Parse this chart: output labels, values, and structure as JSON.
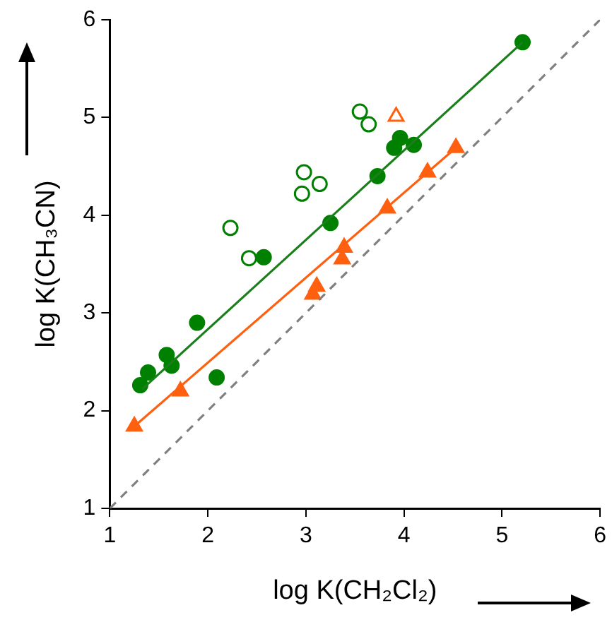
{
  "chart_data": {
    "type": "scatter",
    "xlabel": "log K(CH₂Cl₂)",
    "ylabel": "log K(CH₃CN)",
    "xlim": [
      1,
      6
    ],
    "ylim": [
      1,
      6
    ],
    "xticks": [
      1,
      2,
      3,
      4,
      5,
      6
    ],
    "yticks": [
      1,
      2,
      3,
      4,
      5,
      6
    ],
    "grid": false,
    "legend": false,
    "series": [
      {
        "type": "line",
        "color": "#808080",
        "marker": "none",
        "line_style": "dashed",
        "x": [
          1,
          6
        ],
        "values": [
          1,
          6
        ]
      },
      {
        "type": "line",
        "color": "#1a7f1a",
        "marker": "none",
        "line_style": "solid",
        "x": [
          1.33,
          5.21
        ],
        "values": [
          2.22,
          5.77
        ]
      },
      {
        "type": "line",
        "color": "#ff6010",
        "marker": "none",
        "line_style": "solid",
        "x": [
          1.25,
          4.53
        ],
        "values": [
          1.84,
          4.69
        ]
      },
      {
        "type": "scatter",
        "color": "#008000",
        "marker": "circle",
        "x": [
          1.31,
          1.39,
          1.58,
          1.63,
          1.89,
          2.09,
          2.57,
          3.25,
          3.73,
          3.9,
          3.96,
          4.1,
          5.21
        ],
        "values": [
          2.26,
          2.39,
          2.57,
          2.46,
          2.9,
          2.34,
          3.57,
          3.92,
          4.4,
          4.69,
          4.79,
          4.72,
          5.77
        ]
      },
      {
        "type": "scatter",
        "color": "#008000",
        "marker": "circle-open",
        "x": [
          2.42,
          2.23,
          2.98,
          2.96,
          3.14,
          3.55,
          3.64
        ],
        "values": [
          3.56,
          3.87,
          4.44,
          4.22,
          4.32,
          5.06,
          4.93
        ]
      },
      {
        "type": "scatter",
        "color": "#ff6010",
        "marker": "triangle",
        "x": [
          1.25,
          1.72,
          3.07,
          3.11,
          3.37,
          3.39,
          3.83,
          4.24,
          4.53
        ],
        "values": [
          1.84,
          2.2,
          3.19,
          3.27,
          3.55,
          3.67,
          4.07,
          4.44,
          4.69
        ]
      },
      {
        "type": "scatter",
        "color": "#ff6010",
        "marker": "triangle-open",
        "x": [
          3.92
        ],
        "values": [
          5.01
        ]
      }
    ]
  }
}
